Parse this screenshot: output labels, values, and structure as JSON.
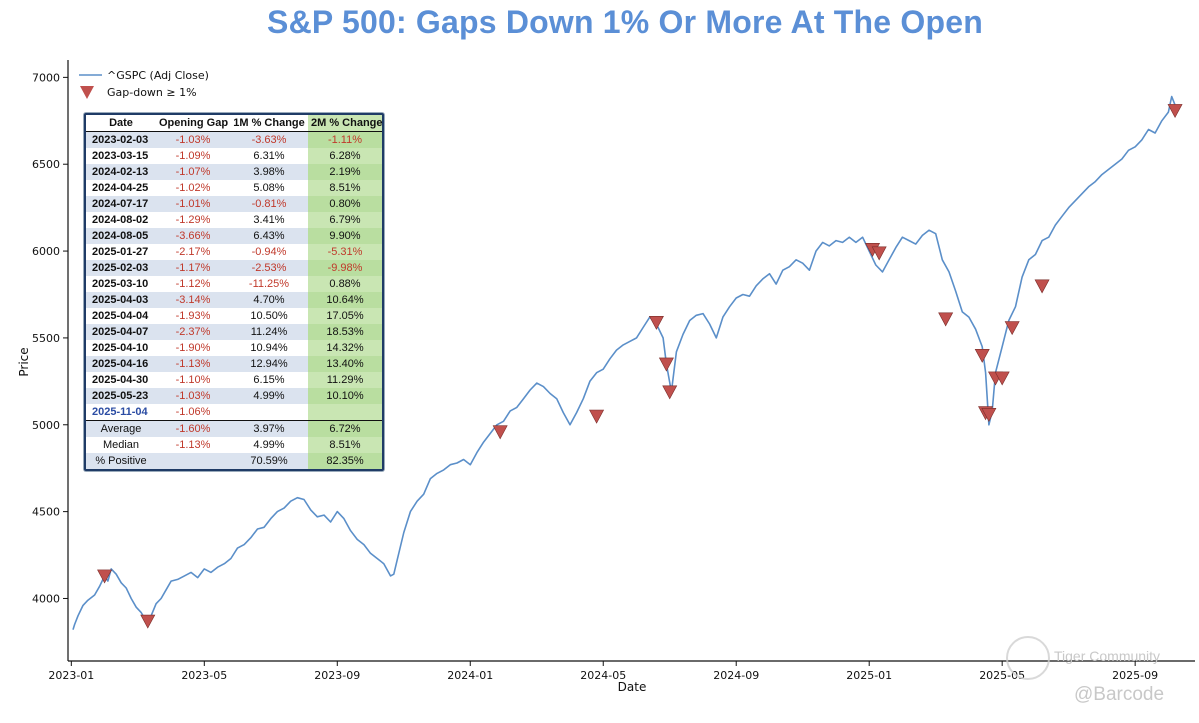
{
  "chart_data": {
    "type": "line",
    "title": "S&P 500: Gaps Down 1% Or More At The Open",
    "xlabel": "Date",
    "ylabel": "Price",
    "xlim": [
      -0.1,
      33.8
    ],
    "ylim": [
      3640,
      7100
    ],
    "x_ticks": [
      {
        "t": 0,
        "label": "2023-01"
      },
      {
        "t": 4,
        "label": "2023-05"
      },
      {
        "t": 8,
        "label": "2023-09"
      },
      {
        "t": 12,
        "label": "2024-01"
      },
      {
        "t": 16,
        "label": "2024-05"
      },
      {
        "t": 20,
        "label": "2024-09"
      },
      {
        "t": 24,
        "label": "2025-01"
      },
      {
        "t": 28,
        "label": "2025-05"
      },
      {
        "t": 32,
        "label": "2025-09"
      }
    ],
    "y_ticks": [
      4000,
      4500,
      5000,
      5500,
      6000,
      6500,
      7000
    ],
    "legend": {
      "position": "top-left",
      "line_label": "^GSPC (Adj Close)",
      "marker_label": "Gap-down ≥ 1%"
    },
    "series": [
      {
        "name": "^GSPC (Adj Close)",
        "color": "#5b8fc9",
        "points": [
          [
            0.05,
            3820
          ],
          [
            0.1,
            3850
          ],
          [
            0.2,
            3900
          ],
          [
            0.35,
            3960
          ],
          [
            0.5,
            3990
          ],
          [
            0.7,
            4020
          ],
          [
            0.85,
            4070
          ],
          [
            1.0,
            4130
          ],
          [
            1.1,
            4100
          ],
          [
            1.2,
            4170
          ],
          [
            1.35,
            4140
          ],
          [
            1.5,
            4090
          ],
          [
            1.65,
            4060
          ],
          [
            1.8,
            4000
          ],
          [
            1.95,
            3950
          ],
          [
            2.1,
            3920
          ],
          [
            2.25,
            3870
          ],
          [
            2.4,
            3900
          ],
          [
            2.55,
            3970
          ],
          [
            2.7,
            4000
          ],
          [
            2.85,
            4050
          ],
          [
            3.0,
            4100
          ],
          [
            3.2,
            4110
          ],
          [
            3.4,
            4130
          ],
          [
            3.6,
            4150
          ],
          [
            3.8,
            4120
          ],
          [
            4.0,
            4170
          ],
          [
            4.2,
            4150
          ],
          [
            4.4,
            4180
          ],
          [
            4.6,
            4200
          ],
          [
            4.8,
            4230
          ],
          [
            5.0,
            4290
          ],
          [
            5.2,
            4310
          ],
          [
            5.4,
            4350
          ],
          [
            5.6,
            4400
          ],
          [
            5.8,
            4410
          ],
          [
            6.0,
            4460
          ],
          [
            6.2,
            4500
          ],
          [
            6.4,
            4520
          ],
          [
            6.6,
            4560
          ],
          [
            6.8,
            4580
          ],
          [
            7.0,
            4570
          ],
          [
            7.2,
            4510
          ],
          [
            7.4,
            4470
          ],
          [
            7.6,
            4480
          ],
          [
            7.8,
            4440
          ],
          [
            8.0,
            4500
          ],
          [
            8.2,
            4460
          ],
          [
            8.4,
            4390
          ],
          [
            8.6,
            4340
          ],
          [
            8.8,
            4310
          ],
          [
            9.0,
            4260
          ],
          [
            9.2,
            4230
          ],
          [
            9.4,
            4200
          ],
          [
            9.6,
            4130
          ],
          [
            9.7,
            4140
          ],
          [
            9.8,
            4220
          ],
          [
            10.0,
            4380
          ],
          [
            10.2,
            4500
          ],
          [
            10.4,
            4560
          ],
          [
            10.6,
            4600
          ],
          [
            10.8,
            4690
          ],
          [
            11.0,
            4720
          ],
          [
            11.2,
            4740
          ],
          [
            11.4,
            4770
          ],
          [
            11.6,
            4780
          ],
          [
            11.8,
            4800
          ],
          [
            12.0,
            4770
          ],
          [
            12.2,
            4840
          ],
          [
            12.4,
            4900
          ],
          [
            12.6,
            4950
          ],
          [
            12.8,
            5000
          ],
          [
            13.0,
            5020
          ],
          [
            13.2,
            5080
          ],
          [
            13.4,
            5100
          ],
          [
            13.6,
            5150
          ],
          [
            13.8,
            5200
          ],
          [
            14.0,
            5240
          ],
          [
            14.2,
            5220
          ],
          [
            14.4,
            5180
          ],
          [
            14.6,
            5150
          ],
          [
            14.8,
            5070
          ],
          [
            15.0,
            5000
          ],
          [
            15.2,
            5070
          ],
          [
            15.4,
            5150
          ],
          [
            15.6,
            5250
          ],
          [
            15.8,
            5300
          ],
          [
            16.0,
            5320
          ],
          [
            16.2,
            5380
          ],
          [
            16.4,
            5430
          ],
          [
            16.6,
            5460
          ],
          [
            16.8,
            5480
          ],
          [
            17.0,
            5500
          ],
          [
            17.2,
            5560
          ],
          [
            17.4,
            5620
          ],
          [
            17.6,
            5580
          ],
          [
            17.8,
            5500
          ],
          [
            17.9,
            5350
          ],
          [
            18.05,
            5190
          ],
          [
            18.2,
            5420
          ],
          [
            18.4,
            5520
          ],
          [
            18.6,
            5600
          ],
          [
            18.8,
            5630
          ],
          [
            19.0,
            5640
          ],
          [
            19.2,
            5580
          ],
          [
            19.4,
            5500
          ],
          [
            19.6,
            5620
          ],
          [
            19.8,
            5680
          ],
          [
            20.0,
            5730
          ],
          [
            20.2,
            5750
          ],
          [
            20.4,
            5740
          ],
          [
            20.6,
            5800
          ],
          [
            20.8,
            5840
          ],
          [
            21.0,
            5870
          ],
          [
            21.2,
            5810
          ],
          [
            21.4,
            5890
          ],
          [
            21.6,
            5910
          ],
          [
            21.8,
            5950
          ],
          [
            22.0,
            5930
          ],
          [
            22.2,
            5890
          ],
          [
            22.4,
            6000
          ],
          [
            22.6,
            6050
          ],
          [
            22.8,
            6030
          ],
          [
            23.0,
            6060
          ],
          [
            23.2,
            6050
          ],
          [
            23.4,
            6080
          ],
          [
            23.6,
            6050
          ],
          [
            23.8,
            6080
          ],
          [
            24.0,
            6000
          ],
          [
            24.2,
            5920
          ],
          [
            24.4,
            5880
          ],
          [
            24.6,
            5950
          ],
          [
            24.8,
            6020
          ],
          [
            25.0,
            6080
          ],
          [
            25.2,
            6060
          ],
          [
            25.4,
            6040
          ],
          [
            25.6,
            6090
          ],
          [
            25.8,
            6120
          ],
          [
            26.0,
            6100
          ],
          [
            26.2,
            5950
          ],
          [
            26.4,
            5880
          ],
          [
            26.6,
            5770
          ],
          [
            26.8,
            5650
          ],
          [
            27.0,
            5620
          ],
          [
            27.2,
            5550
          ],
          [
            27.4,
            5450
          ],
          [
            27.5,
            5300
          ],
          [
            27.6,
            5000
          ],
          [
            27.7,
            5080
          ],
          [
            27.8,
            5300
          ],
          [
            28.0,
            5450
          ],
          [
            28.2,
            5600
          ],
          [
            28.4,
            5680
          ],
          [
            28.6,
            5850
          ],
          [
            28.8,
            5950
          ],
          [
            29.0,
            5980
          ],
          [
            29.2,
            6060
          ],
          [
            29.4,
            6080
          ],
          [
            29.6,
            6150
          ],
          [
            29.8,
            6200
          ],
          [
            30.0,
            6250
          ],
          [
            30.2,
            6290
          ],
          [
            30.4,
            6330
          ],
          [
            30.6,
            6370
          ],
          [
            30.8,
            6400
          ],
          [
            31.0,
            6440
          ],
          [
            31.2,
            6470
          ],
          [
            31.4,
            6500
          ],
          [
            31.6,
            6530
          ],
          [
            31.8,
            6580
          ],
          [
            32.0,
            6600
          ],
          [
            32.2,
            6640
          ],
          [
            32.4,
            6700
          ],
          [
            32.6,
            6680
          ],
          [
            32.8,
            6750
          ],
          [
            33.0,
            6800
          ],
          [
            33.1,
            6890
          ],
          [
            33.2,
            6840
          ]
        ]
      }
    ],
    "markers": {
      "name": "Gap-down ≥ 1%",
      "color": "#c0504d",
      "points": [
        [
          1.0,
          4130
        ],
        [
          2.3,
          3870
        ],
        [
          12.9,
          4960
        ],
        [
          15.8,
          5050
        ],
        [
          17.6,
          5590
        ],
        [
          17.9,
          5350
        ],
        [
          18.0,
          5190
        ],
        [
          24.1,
          6010
        ],
        [
          24.3,
          5990
        ],
        [
          26.3,
          5610
        ],
        [
          27.4,
          5400
        ],
        [
          27.5,
          5070
        ],
        [
          27.6,
          5060
        ],
        [
          27.8,
          5270
        ],
        [
          28.0,
          5270
        ],
        [
          28.3,
          5560
        ],
        [
          29.2,
          5800
        ],
        [
          33.2,
          6810
        ]
      ]
    },
    "table": {
      "headers": [
        "Date",
        "Opening Gap",
        "1M % Change",
        "2M % Change"
      ],
      "rows": [
        [
          "2023-02-03",
          "-1.03%",
          "-3.63%",
          "-1.11%"
        ],
        [
          "2023-03-15",
          "-1.09%",
          "6.31%",
          "6.28%"
        ],
        [
          "2024-02-13",
          "-1.07%",
          "3.98%",
          "2.19%"
        ],
        [
          "2024-04-25",
          "-1.02%",
          "5.08%",
          "8.51%"
        ],
        [
          "2024-07-17",
          "-1.01%",
          "-0.81%",
          "0.80%"
        ],
        [
          "2024-08-02",
          "-1.29%",
          "3.41%",
          "6.79%"
        ],
        [
          "2024-08-05",
          "-3.66%",
          "6.43%",
          "9.90%"
        ],
        [
          "2025-01-27",
          "-2.17%",
          "-0.94%",
          "-5.31%"
        ],
        [
          "2025-02-03",
          "-1.17%",
          "-2.53%",
          "-9.98%"
        ],
        [
          "2025-03-10",
          "-1.12%",
          "-11.25%",
          "0.88%"
        ],
        [
          "2025-04-03",
          "-3.14%",
          "4.70%",
          "10.64%"
        ],
        [
          "2025-04-04",
          "-1.93%",
          "10.50%",
          "17.05%"
        ],
        [
          "2025-04-07",
          "-2.37%",
          "11.24%",
          "18.53%"
        ],
        [
          "2025-04-10",
          "-1.90%",
          "10.94%",
          "14.32%"
        ],
        [
          "2025-04-16",
          "-1.13%",
          "12.94%",
          "13.40%"
        ],
        [
          "2025-04-30",
          "-1.10%",
          "6.15%",
          "11.29%"
        ],
        [
          "2025-05-23",
          "-1.03%",
          "4.99%",
          "10.10%"
        ],
        [
          "2025-11-04",
          "-1.06%",
          "",
          ""
        ]
      ],
      "stats": [
        [
          "Average",
          "-1.60%",
          "3.97%",
          "6.72%"
        ],
        [
          "Median",
          "-1.13%",
          "4.99%",
          "8.51%"
        ],
        [
          "% Positive",
          "",
          "70.59%",
          "82.35%"
        ]
      ]
    }
  },
  "watermark": {
    "brand": "Tiger Community",
    "handle": "@Barcode"
  },
  "colors": {
    "title": "#5b8fd6",
    "line": "#5b8fc9",
    "marker": "#c0504d"
  }
}
